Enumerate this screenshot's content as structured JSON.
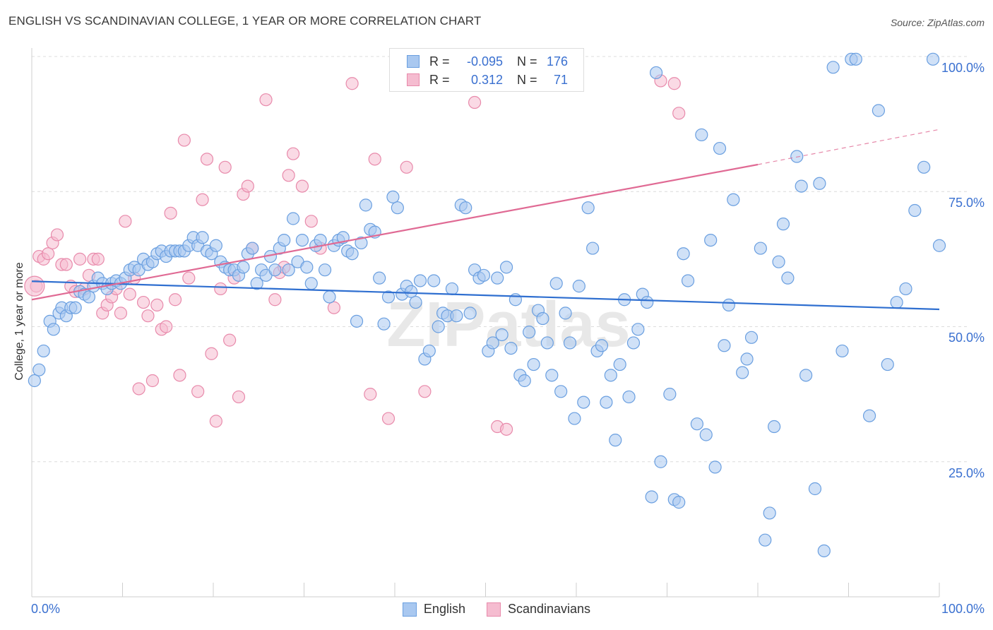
{
  "title": "ENGLISH VS SCANDINAVIAN COLLEGE, 1 YEAR OR MORE CORRELATION CHART",
  "source": "Source: ZipAtlas.com",
  "watermark": "ZIPatlas",
  "legend": {
    "english": {
      "r_label": "R =",
      "r_value": "-0.095",
      "n_label": "N =",
      "n_value": "176"
    },
    "scandinavians": {
      "r_label": "R =",
      "r_value": "0.312",
      "n_label": "N =",
      "n_value": "71"
    }
  },
  "colors": {
    "english_fill": "#a9c8f0",
    "english_stroke": "#6a9fe0",
    "english_line": "#2f6fd0",
    "scand_fill": "#f5bcd0",
    "scand_stroke": "#e88aab",
    "scand_line": "#e06a94",
    "tick_text": "#3a70d0"
  },
  "chart_data": {
    "type": "scatter",
    "title": "ENGLISH VS SCANDINAVIAN COLLEGE, 1 YEAR OR MORE CORRELATION CHART",
    "xlabel": "",
    "ylabel": "College, 1 year or more",
    "xlim": [
      0,
      100
    ],
    "ylim": [
      0,
      100
    ],
    "x_tick_labels": [
      "0.0%",
      "100.0%"
    ],
    "y_tick_labels": [
      "25.0%",
      "50.0%",
      "75.0%",
      "100.0%"
    ],
    "y_ticks": [
      25,
      50,
      75,
      100
    ],
    "legend_position": "top-center",
    "series": [
      {
        "name": "English",
        "trend": {
          "x0": 0,
          "y0": 58.4,
          "x1": 100,
          "y1": 53.2
        },
        "points": [
          [
            0.3,
            40
          ],
          [
            0.8,
            42
          ],
          [
            1.3,
            45.5
          ],
          [
            2,
            51
          ],
          [
            2.4,
            49.5
          ],
          [
            3,
            52.5
          ],
          [
            3.3,
            53.5
          ],
          [
            3.8,
            52
          ],
          [
            4.3,
            53.5
          ],
          [
            4.8,
            53.5
          ],
          [
            5.3,
            56.5
          ],
          [
            5.8,
            56
          ],
          [
            6.3,
            55.5
          ],
          [
            6.8,
            57.5
          ],
          [
            7.3,
            59
          ],
          [
            7.8,
            58
          ],
          [
            8.3,
            57
          ],
          [
            8.8,
            58
          ],
          [
            9.3,
            58.5
          ],
          [
            9.8,
            58
          ],
          [
            10.3,
            59
          ],
          [
            10.8,
            60.5
          ],
          [
            11.3,
            61
          ],
          [
            11.8,
            60.5
          ],
          [
            12.3,
            62.5
          ],
          [
            12.8,
            61.5
          ],
          [
            13.3,
            62
          ],
          [
            13.8,
            63.5
          ],
          [
            14.3,
            64
          ],
          [
            14.8,
            63
          ],
          [
            15.3,
            64
          ],
          [
            15.8,
            64
          ],
          [
            16.3,
            64
          ],
          [
            16.8,
            64
          ],
          [
            17.3,
            65
          ],
          [
            17.8,
            66.5
          ],
          [
            18.3,
            65
          ],
          [
            18.8,
            66.5
          ],
          [
            19.3,
            64
          ],
          [
            19.8,
            63.5
          ],
          [
            20.3,
            65
          ],
          [
            20.8,
            62
          ],
          [
            21.3,
            61
          ],
          [
            21.8,
            60.5
          ],
          [
            22.3,
            60.5
          ],
          [
            22.8,
            59.5
          ],
          [
            23.3,
            61
          ],
          [
            23.8,
            63.5
          ],
          [
            24.3,
            64.5
          ],
          [
            24.8,
            58
          ],
          [
            25.3,
            60.5
          ],
          [
            25.8,
            59.5
          ],
          [
            26.3,
            63
          ],
          [
            26.8,
            60.5
          ],
          [
            27.3,
            64.5
          ],
          [
            27.8,
            66
          ],
          [
            28.3,
            60.5
          ],
          [
            28.8,
            70
          ],
          [
            29.3,
            62
          ],
          [
            29.8,
            66
          ],
          [
            30.3,
            61
          ],
          [
            30.8,
            58
          ],
          [
            31.3,
            65
          ],
          [
            31.8,
            66
          ],
          [
            32.3,
            60.5
          ],
          [
            32.8,
            55.5
          ],
          [
            33.3,
            65
          ],
          [
            33.8,
            66
          ],
          [
            34.3,
            66.5
          ],
          [
            34.8,
            64
          ],
          [
            35.3,
            63.5
          ],
          [
            35.8,
            51
          ],
          [
            36.3,
            65.5
          ],
          [
            36.8,
            72.5
          ],
          [
            37.3,
            68
          ],
          [
            37.8,
            67.5
          ],
          [
            38.3,
            59
          ],
          [
            38.8,
            50.5
          ],
          [
            39.3,
            55.5
          ],
          [
            39.8,
            74
          ],
          [
            40.3,
            72
          ],
          [
            40.8,
            56
          ],
          [
            41.3,
            57.5
          ],
          [
            41.8,
            56.5
          ],
          [
            42.3,
            54.5
          ],
          [
            42.8,
            58.5
          ],
          [
            43.3,
            44
          ],
          [
            43.8,
            45.5
          ],
          [
            44.3,
            58.5
          ],
          [
            44.8,
            50
          ],
          [
            45.3,
            52.5
          ],
          [
            45.8,
            52
          ],
          [
            46.3,
            57
          ],
          [
            46.8,
            52
          ],
          [
            47.3,
            72.5
          ],
          [
            47.8,
            72
          ],
          [
            48.3,
            52.5
          ],
          [
            48.8,
            60.5
          ],
          [
            49.3,
            59
          ],
          [
            49.8,
            59.5
          ],
          [
            50.3,
            45.5
          ],
          [
            50.8,
            47
          ],
          [
            51.3,
            59
          ],
          [
            51.8,
            48.5
          ],
          [
            52.3,
            61
          ],
          [
            52.8,
            46
          ],
          [
            53.3,
            55
          ],
          [
            53.8,
            41
          ],
          [
            54.3,
            40
          ],
          [
            54.8,
            49
          ],
          [
            55.3,
            43
          ],
          [
            55.8,
            53
          ],
          [
            56.3,
            51.5
          ],
          [
            56.8,
            47
          ],
          [
            57.3,
            41
          ],
          [
            57.8,
            58
          ],
          [
            58.3,
            38
          ],
          [
            58.8,
            52.5
          ],
          [
            59.3,
            47
          ],
          [
            59.8,
            33
          ],
          [
            60.3,
            57.5
          ],
          [
            60.8,
            36
          ],
          [
            61.3,
            72
          ],
          [
            61.8,
            64.5
          ],
          [
            62.3,
            45.5
          ],
          [
            62.8,
            46.5
          ],
          [
            63.3,
            36
          ],
          [
            63.8,
            41
          ],
          [
            64.3,
            29
          ],
          [
            64.8,
            43
          ],
          [
            65.3,
            55
          ],
          [
            65.8,
            37
          ],
          [
            66.3,
            47
          ],
          [
            66.8,
            49.5
          ],
          [
            67.3,
            56
          ],
          [
            67.8,
            54.5
          ],
          [
            68.3,
            18.5
          ],
          [
            68.8,
            97
          ],
          [
            69.3,
            25
          ],
          [
            70.3,
            37.5
          ],
          [
            70.8,
            18
          ],
          [
            71.3,
            17.5
          ],
          [
            71.8,
            63.5
          ],
          [
            72.3,
            58.5
          ],
          [
            73.3,
            32
          ],
          [
            73.8,
            85.5
          ],
          [
            74.3,
            30
          ],
          [
            74.8,
            66
          ],
          [
            75.3,
            24
          ],
          [
            75.8,
            83
          ],
          [
            76.3,
            46.5
          ],
          [
            76.8,
            54
          ],
          [
            77.3,
            73.5
          ],
          [
            78.3,
            41.5
          ],
          [
            78.8,
            44
          ],
          [
            79.3,
            48
          ],
          [
            80.3,
            64.5
          ],
          [
            80.8,
            10.5
          ],
          [
            81.3,
            15.5
          ],
          [
            81.8,
            31.5
          ],
          [
            82.3,
            62
          ],
          [
            82.8,
            69
          ],
          [
            83.3,
            59
          ],
          [
            84.3,
            81.5
          ],
          [
            84.8,
            76
          ],
          [
            85.3,
            41
          ],
          [
            86.3,
            20
          ],
          [
            86.8,
            76.5
          ],
          [
            87.3,
            8.5
          ],
          [
            88.3,
            98
          ],
          [
            89.3,
            45.5
          ],
          [
            90.3,
            99.5
          ],
          [
            90.8,
            99.5
          ],
          [
            92.3,
            33.5
          ],
          [
            93.3,
            90
          ],
          [
            94.3,
            43
          ],
          [
            95.3,
            54.5
          ],
          [
            96.3,
            57
          ],
          [
            97.3,
            71.5
          ],
          [
            98.3,
            79.5
          ],
          [
            99.3,
            99.5
          ],
          [
            100,
            65
          ]
        ]
      },
      {
        "name": "Scandinavians",
        "trend": {
          "x0": 0,
          "y0": 55.0,
          "x1": 80,
          "y1": 80.0,
          "dashed_x1": 100,
          "dashed_y1": 86.5
        },
        "points": [
          [
            0.5,
            57.5
          ],
          [
            0.8,
            63
          ],
          [
            1.3,
            62.5
          ],
          [
            1.8,
            63.5
          ],
          [
            2.3,
            65.5
          ],
          [
            2.8,
            67
          ],
          [
            3.3,
            61.5
          ],
          [
            3.8,
            61.5
          ],
          [
            4.3,
            57.5
          ],
          [
            4.8,
            56.5
          ],
          [
            5.3,
            62.5
          ],
          [
            5.8,
            57
          ],
          [
            6.3,
            59.5
          ],
          [
            6.8,
            62.5
          ],
          [
            7.3,
            62.5
          ],
          [
            7.8,
            52.5
          ],
          [
            8.3,
            54
          ],
          [
            8.8,
            55.5
          ],
          [
            9.3,
            57
          ],
          [
            9.8,
            52.5
          ],
          [
            10.3,
            69.5
          ],
          [
            10.8,
            56
          ],
          [
            11.3,
            59
          ],
          [
            11.8,
            38.5
          ],
          [
            12.3,
            54.5
          ],
          [
            12.8,
            52
          ],
          [
            13.3,
            40
          ],
          [
            13.8,
            54
          ],
          [
            14.3,
            49.5
          ],
          [
            14.8,
            50
          ],
          [
            15.3,
            71
          ],
          [
            15.8,
            55
          ],
          [
            16.3,
            41
          ],
          [
            16.8,
            84.5
          ],
          [
            17.3,
            59
          ],
          [
            18.3,
            38
          ],
          [
            18.8,
            73.5
          ],
          [
            19.3,
            81
          ],
          [
            19.8,
            45
          ],
          [
            20.3,
            32.5
          ],
          [
            20.8,
            57
          ],
          [
            21.3,
            79.5
          ],
          [
            21.8,
            47.5
          ],
          [
            22.3,
            59
          ],
          [
            22.8,
            37
          ],
          [
            23.3,
            74.5
          ],
          [
            23.8,
            76
          ],
          [
            24.3,
            64.5
          ],
          [
            25.8,
            92
          ],
          [
            26.8,
            55
          ],
          [
            27.3,
            60
          ],
          [
            27.8,
            61
          ],
          [
            28.3,
            78
          ],
          [
            28.8,
            82
          ],
          [
            29.8,
            76
          ],
          [
            30.8,
            69.5
          ],
          [
            31.8,
            64.5
          ],
          [
            33.3,
            53.5
          ],
          [
            35.3,
            95
          ],
          [
            37.3,
            37.5
          ],
          [
            37.8,
            81
          ],
          [
            39.3,
            33
          ],
          [
            41.3,
            79.5
          ],
          [
            43.3,
            38
          ],
          [
            47.3,
            100
          ],
          [
            48.8,
            91.5
          ],
          [
            51.3,
            31.5
          ],
          [
            52.3,
            31
          ],
          [
            69.3,
            95.5
          ],
          [
            70.8,
            95
          ],
          [
            71.3,
            89.5
          ]
        ]
      }
    ]
  }
}
